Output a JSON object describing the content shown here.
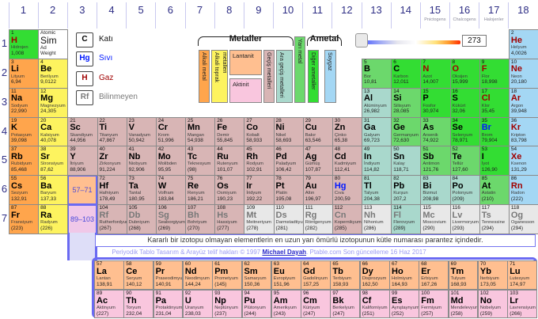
{
  "header": {
    "groups": [
      "1",
      "2",
      "3",
      "4",
      "5",
      "6",
      "7",
      "8",
      "9",
      "10",
      "11",
      "12",
      "13",
      "14",
      "15",
      "16",
      "17",
      "18"
    ],
    "group_sublabels": [
      {
        "group": 15,
        "label": "Pnictogens"
      },
      {
        "group": 16,
        "label": "Chalcogens"
      },
      {
        "group": 17,
        "label": "Halojenler"
      }
    ],
    "periods": [
      "1",
      "2",
      "3",
      "4",
      "5",
      "6",
      "7"
    ]
  },
  "key_cell": {
    "number_label": "Atomic",
    "symbol_label": "Sim",
    "name_label": "Ad",
    "weight_label": "Weight"
  },
  "phase_legend": [
    {
      "symbol": "C",
      "label": "Katı",
      "color": "#000000"
    },
    {
      "symbol": "Hg",
      "label": "Sıvı",
      "color": "#0018ff"
    },
    {
      "symbol": "H",
      "label": "Gaz",
      "color": "#a00000"
    },
    {
      "symbol": "Rf",
      "label": "Bilinmeyen",
      "color": "#787878"
    }
  ],
  "category_legend": {
    "metals_label": "Metaller",
    "nonmetals_label": "Ametal",
    "alkali": "Alkali metal",
    "toprak": "Alkali toprak metalleri",
    "lantanit": "Lantanit",
    "aktinit": "Aktinit",
    "gecis": "Geçiş metalleri",
    "ara": "Ara geçiş metalleri",
    "yari": "Yarı metal",
    "diger": "Diğer ametaller",
    "soygaz": "Soygaz"
  },
  "slider": {
    "value": "273"
  },
  "colors": {
    "alkali": "#ffa54c",
    "toprak": "#fdf35f",
    "gecis": "#d8b5b5",
    "ara": "#a9d8cc",
    "yari": "#6cd86c",
    "diger": "#33dd33",
    "soygaz": "#a4d7f4",
    "lantanit": "#ffbf90",
    "aktinit": "#f9c6de",
    "bilinmeyen": "#e8e8e8",
    "phase_solid": "#000000",
    "phase_liquid": "#0018ff",
    "phase_gas": "#a00000",
    "phase_unknown": "#787878",
    "frame_blue": "#6a6af2"
  },
  "range_links": {
    "lanthanide": "57–71",
    "actinide": "89–103"
  },
  "elements": [
    [
      1,
      "H",
      "Hidrojen",
      "1,008",
      "diger",
      "g",
      1,
      1
    ],
    [
      2,
      "He",
      "Helyum",
      "4,0026",
      "soygaz",
      "g",
      1,
      18
    ],
    [
      3,
      "Li",
      "Lityum",
      "6,94",
      "alkali",
      "s",
      2,
      1
    ],
    [
      4,
      "Be",
      "Berilyum",
      "9,0122",
      "toprak",
      "s",
      2,
      2
    ],
    [
      5,
      "B",
      "Bor",
      "10,81",
      "yari",
      "s",
      2,
      13
    ],
    [
      6,
      "C",
      "Karbon",
      "12,011",
      "diger",
      "s",
      2,
      14
    ],
    [
      7,
      "N",
      "Azot",
      "14,007",
      "diger",
      "g",
      2,
      15
    ],
    [
      8,
      "O",
      "Oksijen",
      "15,999",
      "diger",
      "g",
      2,
      16
    ],
    [
      9,
      "F",
      "Flor",
      "18,998",
      "diger",
      "g",
      2,
      17
    ],
    [
      10,
      "Ne",
      "Neon",
      "20,180",
      "soygaz",
      "g",
      2,
      18
    ],
    [
      11,
      "Na",
      "Sodyum",
      "22,990",
      "alkali",
      "s",
      3,
      1
    ],
    [
      12,
      "Mg",
      "Magnezyum",
      "24,305",
      "toprak",
      "s",
      3,
      2
    ],
    [
      13,
      "Al",
      "Alüminyum",
      "26,982",
      "ara",
      "s",
      3,
      13
    ],
    [
      14,
      "Si",
      "Silisyum",
      "28,085",
      "yari",
      "s",
      3,
      14
    ],
    [
      15,
      "P",
      "Fosfor",
      "30,974",
      "diger",
      "s",
      3,
      15
    ],
    [
      16,
      "S",
      "Kükürt",
      "32,06",
      "diger",
      "s",
      3,
      16
    ],
    [
      17,
      "Cl",
      "Klor",
      "35,45",
      "diger",
      "g",
      3,
      17
    ],
    [
      18,
      "Ar",
      "Argon",
      "39,948",
      "soygaz",
      "g",
      3,
      18
    ],
    [
      19,
      "K",
      "Potasyum",
      "39,098",
      "alkali",
      "s",
      4,
      1
    ],
    [
      20,
      "Ca",
      "Kalsiyum",
      "40,078",
      "toprak",
      "s",
      4,
      2
    ],
    [
      21,
      "Sc",
      "Skandiyum",
      "44,956",
      "gecis",
      "s",
      4,
      3
    ],
    [
      22,
      "Ti",
      "Titanyum",
      "47,867",
      "gecis",
      "s",
      4,
      4
    ],
    [
      23,
      "V",
      "Vanadyum",
      "50,942",
      "gecis",
      "s",
      4,
      5
    ],
    [
      24,
      "Cr",
      "Krom",
      "51,996",
      "gecis",
      "s",
      4,
      6
    ],
    [
      25,
      "Mn",
      "Mangan",
      "54,938",
      "gecis",
      "s",
      4,
      7
    ],
    [
      26,
      "Fe",
      "Demir",
      "55,845",
      "gecis",
      "s",
      4,
      8
    ],
    [
      27,
      "Co",
      "Kobalt",
      "58,933",
      "gecis",
      "s",
      4,
      9
    ],
    [
      28,
      "Ni",
      "Nikel",
      "58,693",
      "gecis",
      "s",
      4,
      10
    ],
    [
      29,
      "Cu",
      "Bakır",
      "63,546",
      "gecis",
      "s",
      4,
      11
    ],
    [
      30,
      "Zn",
      "Çinko",
      "65,38",
      "gecis",
      "s",
      4,
      12
    ],
    [
      31,
      "Ga",
      "Galyum",
      "69,723",
      "ara",
      "s",
      4,
      13
    ],
    [
      32,
      "Ge",
      "Germanyum",
      "72,630",
      "yari",
      "s",
      4,
      14
    ],
    [
      33,
      "As",
      "Arsenik",
      "74,922",
      "yari",
      "s",
      4,
      15
    ],
    [
      34,
      "Se",
      "Selenyum",
      "78,971",
      "diger",
      "s",
      4,
      16
    ],
    [
      35,
      "Br",
      "Brom",
      "79,904",
      "diger",
      "l",
      4,
      17
    ],
    [
      36,
      "Kr",
      "Kripton",
      "83,798",
      "soygaz",
      "g",
      4,
      18
    ],
    [
      37,
      "Rb",
      "Rubidyum",
      "85,468",
      "alkali",
      "s",
      5,
      1
    ],
    [
      38,
      "Sr",
      "Stronsiyum",
      "87,62",
      "toprak",
      "s",
      5,
      2
    ],
    [
      39,
      "Y",
      "İtriyum",
      "88,906",
      "gecis",
      "s",
      5,
      3
    ],
    [
      40,
      "Zr",
      "Zirkonyum",
      "91,224",
      "gecis",
      "s",
      5,
      4
    ],
    [
      41,
      "Nb",
      "Niobyum",
      "92,906",
      "gecis",
      "s",
      5,
      5
    ],
    [
      42,
      "Mo",
      "Molibden",
      "95,95",
      "gecis",
      "s",
      5,
      6
    ],
    [
      43,
      "Tc",
      "Teknesyum",
      "(98)",
      "gecis",
      "s",
      5,
      7
    ],
    [
      44,
      "Ru",
      "Rutenyum",
      "101,07",
      "gecis",
      "s",
      5,
      8
    ],
    [
      45,
      "Rh",
      "Rodyum",
      "102,91",
      "gecis",
      "s",
      5,
      9
    ],
    [
      46,
      "Pd",
      "Paladyum",
      "106,42",
      "gecis",
      "s",
      5,
      10
    ],
    [
      47,
      "Ag",
      "Gümüş",
      "107,87",
      "gecis",
      "s",
      5,
      11
    ],
    [
      48,
      "Cd",
      "Kadmiyum",
      "112,41",
      "gecis",
      "s",
      5,
      12
    ],
    [
      49,
      "In",
      "İndiyum",
      "114,82",
      "ara",
      "s",
      5,
      13
    ],
    [
      50,
      "Sn",
      "Kalay",
      "118,71",
      "ara",
      "s",
      5,
      14
    ],
    [
      51,
      "Sb",
      "Antimon",
      "121,76",
      "yari",
      "s",
      5,
      15
    ],
    [
      52,
      "Te",
      "Tellür",
      "127,60",
      "yari",
      "s",
      5,
      16
    ],
    [
      53,
      "I",
      "İyot",
      "126,90",
      "diger",
      "s",
      5,
      17
    ],
    [
      54,
      "Xe",
      "Ksenon",
      "131,29",
      "soygaz",
      "g",
      5,
      18
    ],
    [
      55,
      "Cs",
      "Sezyum",
      "132,91",
      "alkali",
      "s",
      6,
      1
    ],
    [
      56,
      "Ba",
      "Baryum",
      "137,33",
      "toprak",
      "s",
      6,
      2
    ],
    [
      72,
      "Hf",
      "Hafniyum",
      "178,49",
      "gecis",
      "s",
      6,
      4
    ],
    [
      73,
      "Ta",
      "Tantal",
      "180,95",
      "gecis",
      "s",
      6,
      5
    ],
    [
      74,
      "W",
      "Volfram",
      "183,84",
      "gecis",
      "s",
      6,
      6
    ],
    [
      75,
      "Re",
      "Renyum",
      "186,21",
      "gecis",
      "s",
      6,
      7
    ],
    [
      76,
      "Os",
      "Osmiyum",
      "190,23",
      "gecis",
      "s",
      6,
      8
    ],
    [
      77,
      "Ir",
      "İridyum",
      "192,22",
      "gecis",
      "s",
      6,
      9
    ],
    [
      78,
      "Pt",
      "Platin",
      "195,08",
      "gecis",
      "s",
      6,
      10
    ],
    [
      79,
      "Au",
      "Altın",
      "196,97",
      "gecis",
      "s",
      6,
      11
    ],
    [
      80,
      "Hg",
      "Cıva",
      "200,59",
      "gecis",
      "l",
      6,
      12
    ],
    [
      81,
      "Tl",
      "Talyum",
      "204,38",
      "ara",
      "s",
      6,
      13
    ],
    [
      82,
      "Pb",
      "Kurşun",
      "207,2",
      "ara",
      "s",
      6,
      14
    ],
    [
      83,
      "Bi",
      "Bizmut",
      "208,98",
      "ara",
      "s",
      6,
      15
    ],
    [
      84,
      "Po",
      "Polonyum",
      "(209)",
      "ara",
      "s",
      6,
      16
    ],
    [
      85,
      "At",
      "Astatin",
      "(210)",
      "yari",
      "s",
      6,
      17
    ],
    [
      86,
      "Rn",
      "Radon",
      "(222)",
      "soygaz",
      "g",
      6,
      18
    ],
    [
      87,
      "Fr",
      "Fransiyum",
      "(223)",
      "alkali",
      "s",
      7,
      1
    ],
    [
      88,
      "Ra",
      "Radyum",
      "(226)",
      "toprak",
      "s",
      7,
      2
    ],
    [
      104,
      "Rf",
      "Rutherfordyum",
      "(267)",
      "gecis",
      "u",
      7,
      4
    ],
    [
      105,
      "Db",
      "Dubniyum",
      "(268)",
      "gecis",
      "u",
      7,
      5
    ],
    [
      106,
      "Sg",
      "Seaborgiyum",
      "(269)",
      "gecis",
      "u",
      7,
      6
    ],
    [
      107,
      "Bh",
      "Bohriyum",
      "(270)",
      "gecis",
      "u",
      7,
      7
    ],
    [
      108,
      "Hs",
      "Hassiyum",
      "(277)",
      "gecis",
      "u",
      7,
      8
    ],
    [
      109,
      "Mt",
      "Meitneriyum",
      "(278)",
      "bilinmeyen",
      "u",
      7,
      9
    ],
    [
      110,
      "Ds",
      "Darmstadtiyum",
      "(281)",
      "bilinmeyen",
      "u",
      7,
      10
    ],
    [
      111,
      "Rg",
      "Röntgenyum",
      "(282)",
      "bilinmeyen",
      "u",
      7,
      11
    ],
    [
      112,
      "Cn",
      "Kopernikyum",
      "(285)",
      "gecis",
      "u",
      7,
      12
    ],
    [
      113,
      "Nh",
      "Nihonium",
      "(286)",
      "bilinmeyen",
      "u",
      7,
      13
    ],
    [
      114,
      "Fl",
      "Flerovyum",
      "(289)",
      "ara",
      "u",
      7,
      14
    ],
    [
      115,
      "Mc",
      "Moscovium",
      "(290)",
      "bilinmeyen",
      "u",
      7,
      15
    ],
    [
      116,
      "Lv",
      "Livermoryum",
      "(293)",
      "bilinmeyen",
      "u",
      7,
      16
    ],
    [
      117,
      "Ts",
      "Tennessine",
      "(294)",
      "bilinmeyen",
      "u",
      7,
      17
    ],
    [
      118,
      "Og",
      "Oganesson",
      "(294)",
      "bilinmeyen",
      "u",
      7,
      18
    ],
    [
      57,
      "La",
      "Lantan",
      "138,91",
      "lantanit",
      "s",
      8,
      4
    ],
    [
      58,
      "Ce",
      "Seryum",
      "140,12",
      "lantanit",
      "s",
      8,
      5
    ],
    [
      59,
      "Pr",
      "Praseodimyum",
      "140,91",
      "lantanit",
      "s",
      8,
      6
    ],
    [
      60,
      "Nd",
      "Neodimyum",
      "144,24",
      "lantanit",
      "s",
      8,
      7
    ],
    [
      61,
      "Pm",
      "Prometyum",
      "(145)",
      "lantanit",
      "s",
      8,
      8
    ],
    [
      62,
      "Sm",
      "Samaryum",
      "150,36",
      "lantanit",
      "s",
      8,
      9
    ],
    [
      63,
      "Eu",
      "Evropiyum",
      "151,96",
      "lantanit",
      "s",
      8,
      10
    ],
    [
      64,
      "Gd",
      "Gadolinyum",
      "157,25",
      "lantanit",
      "s",
      8,
      11
    ],
    [
      65,
      "Tb",
      "Terbiyum",
      "158,93",
      "lantanit",
      "s",
      8,
      12
    ],
    [
      66,
      "Dy",
      "Disprozyum",
      "162,50",
      "lantanit",
      "s",
      8,
      13
    ],
    [
      67,
      "Ho",
      "Holmiyum",
      "164,93",
      "lantanit",
      "s",
      8,
      14
    ],
    [
      68,
      "Er",
      "Erbiyum",
      "167,26",
      "lantanit",
      "s",
      8,
      15
    ],
    [
      69,
      "Tm",
      "Tulyum",
      "168,93",
      "lantanit",
      "s",
      8,
      16
    ],
    [
      70,
      "Yb",
      "İterbiyum",
      "173,05",
      "lantanit",
      "s",
      8,
      17
    ],
    [
      71,
      "Lu",
      "Lutesyum",
      "174,97",
      "lantanit",
      "s",
      8,
      18
    ],
    [
      89,
      "Ac",
      "Aktinyum",
      "(227)",
      "aktinit",
      "s",
      9,
      4
    ],
    [
      90,
      "Th",
      "Toryum",
      "232,04",
      "aktinit",
      "s",
      9,
      5
    ],
    [
      91,
      "Pa",
      "Protaktinyum",
      "231,04",
      "aktinit",
      "s",
      9,
      6
    ],
    [
      92,
      "U",
      "Uranyum",
      "238,03",
      "aktinit",
      "s",
      9,
      7
    ],
    [
      93,
      "Np",
      "Neptünyum",
      "(237)",
      "aktinit",
      "s",
      9,
      8
    ],
    [
      94,
      "Pu",
      "Plütonyum",
      "(244)",
      "aktinit",
      "s",
      9,
      9
    ],
    [
      95,
      "Am",
      "Amerikyum",
      "(243)",
      "aktinit",
      "s",
      9,
      10
    ],
    [
      96,
      "Cm",
      "Küriyum",
      "(247)",
      "aktinit",
      "s",
      9,
      11
    ],
    [
      97,
      "Bk",
      "Berkelyum",
      "(247)",
      "aktinit",
      "s",
      9,
      12
    ],
    [
      98,
      "Cf",
      "Kaliforniyum",
      "(251)",
      "aktinit",
      "s",
      9,
      13
    ],
    [
      99,
      "Es",
      "Aynştaynyum",
      "(252)",
      "aktinit",
      "s",
      9,
      14
    ],
    [
      100,
      "Fm",
      "Fermiyum",
      "(257)",
      "aktinit",
      "s",
      9,
      15
    ],
    [
      101,
      "Md",
      "Mendelevyum",
      "(258)",
      "aktinit",
      "s",
      9,
      16
    ],
    [
      102,
      "No",
      "Nobelyum",
      "(259)",
      "aktinit",
      "s",
      9,
      17
    ],
    [
      103,
      "Lr",
      "Lavrensiyum",
      "(266)",
      "aktinit",
      "s",
      9,
      18
    ]
  ],
  "footer": {
    "note": "Kararlı bir izotopu olmayan elementlerin en uzun yarı ömürlü izotopunun kütle numarası parantez içindedir.",
    "copyright_prefix": "Periyodik Tablo Tasarım & Arayüz telif hakları © 1997 ",
    "copyright_link": "Michael Dayah",
    "copyright_suffix": ". Ptable.com Son güncelleme 16 Haz 2017"
  }
}
